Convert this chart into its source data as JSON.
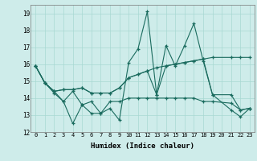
{
  "title": "",
  "xlabel": "Humidex (Indice chaleur)",
  "ylabel": "",
  "background_color": "#ceecea",
  "grid_color": "#a8d8d2",
  "line_color": "#1a6b5e",
  "xlim": [
    -0.5,
    23.5
  ],
  "ylim": [
    12,
    19.5
  ],
  "yticks": [
    12,
    13,
    14,
    15,
    16,
    17,
    18,
    19
  ],
  "xticks": [
    0,
    1,
    2,
    3,
    4,
    5,
    6,
    7,
    8,
    9,
    10,
    11,
    12,
    13,
    14,
    15,
    16,
    17,
    18,
    19,
    20,
    21,
    22,
    23
  ],
  "series": [
    [
      15.9,
      14.9,
      14.3,
      13.8,
      12.5,
      13.6,
      13.1,
      13.1,
      13.4,
      12.7,
      16.1,
      16.9,
      19.1,
      14.2,
      17.1,
      15.9,
      17.1,
      18.4,
      16.2,
      14.2,
      null,
      13.3,
      12.9,
      13.4
    ],
    [
      15.9,
      14.9,
      14.4,
      14.5,
      14.5,
      14.6,
      14.3,
      14.3,
      14.3,
      14.6,
      15.2,
      15.4,
      15.6,
      15.8,
      15.9,
      16.0,
      16.1,
      16.2,
      16.3,
      16.4,
      null,
      16.4,
      16.4,
      16.4
    ],
    [
      15.9,
      14.9,
      14.4,
      14.5,
      14.5,
      14.6,
      14.3,
      14.3,
      14.3,
      14.6,
      15.2,
      15.4,
      15.6,
      14.2,
      15.9,
      16.0,
      16.1,
      16.2,
      16.3,
      14.2,
      null,
      14.2,
      13.3,
      13.4
    ],
    [
      15.9,
      14.9,
      14.4,
      13.8,
      14.4,
      13.6,
      13.8,
      13.1,
      13.8,
      13.8,
      14.0,
      14.0,
      14.0,
      14.0,
      14.0,
      14.0,
      14.0,
      14.0,
      13.8,
      13.8,
      null,
      13.7,
      13.3,
      13.4
    ]
  ]
}
